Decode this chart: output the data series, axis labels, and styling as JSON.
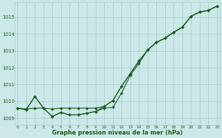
{
  "title": "Graphe pression niveau de la mer (hPa)",
  "bg_color": "#cce8e8",
  "grid_color": "#aacccc",
  "line_color": "#1a5c1a",
  "xlim": [
    -0.3,
    23.3
  ],
  "ylim": [
    1008.6,
    1015.9
  ],
  "yticks": [
    1009,
    1010,
    1011,
    1012,
    1013,
    1014,
    1015
  ],
  "xticks": [
    0,
    1,
    2,
    3,
    4,
    5,
    6,
    7,
    8,
    9,
    10,
    11,
    12,
    13,
    14,
    15,
    16,
    17,
    18,
    19,
    20,
    21,
    22,
    23
  ],
  "line1_x": [
    0,
    1,
    2,
    3,
    4,
    5,
    6,
    7,
    8,
    9,
    10,
    11,
    12,
    13,
    14,
    15,
    16,
    17,
    18,
    19,
    20,
    21,
    22,
    23
  ],
  "line1_y": [
    1009.6,
    1009.5,
    1010.3,
    1009.6,
    1009.1,
    1009.35,
    1009.2,
    1009.2,
    1009.3,
    1009.4,
    1009.6,
    1009.65,
    1010.5,
    1011.55,
    1012.25,
    1013.05,
    1013.5,
    1013.75,
    1014.1,
    1014.4,
    1015.05,
    1015.3,
    1015.4,
    1015.65
  ],
  "line2_x": [
    0,
    1,
    2,
    3,
    4,
    5,
    6,
    7,
    8,
    9,
    10,
    11,
    12,
    13,
    14,
    15,
    16,
    17,
    18,
    19,
    20,
    21,
    22,
    23
  ],
  "line2_y": [
    1009.6,
    1009.5,
    1010.3,
    1009.6,
    1009.1,
    1009.35,
    1009.2,
    1009.2,
    1009.3,
    1009.4,
    1009.7,
    1010.05,
    1010.9,
    1011.65,
    1012.4,
    1013.05,
    1013.5,
    1013.75,
    1014.1,
    1014.4,
    1015.05,
    1015.3,
    1015.4,
    1015.65
  ],
  "line3_x": [
    0,
    1,
    2,
    3,
    4,
    5,
    6,
    7,
    8,
    9,
    10,
    11,
    12,
    13,
    14,
    15,
    16,
    17,
    18,
    19,
    20,
    21,
    22,
    23
  ],
  "line3_y": [
    1009.6,
    1009.55,
    1009.6,
    1009.6,
    1009.55,
    1009.6,
    1009.6,
    1009.6,
    1009.6,
    1009.6,
    1009.7,
    1010.05,
    1010.9,
    1011.65,
    1012.4,
    1013.05,
    1013.5,
    1013.75,
    1014.1,
    1014.4,
    1015.05,
    1015.3,
    1015.4,
    1015.65
  ]
}
